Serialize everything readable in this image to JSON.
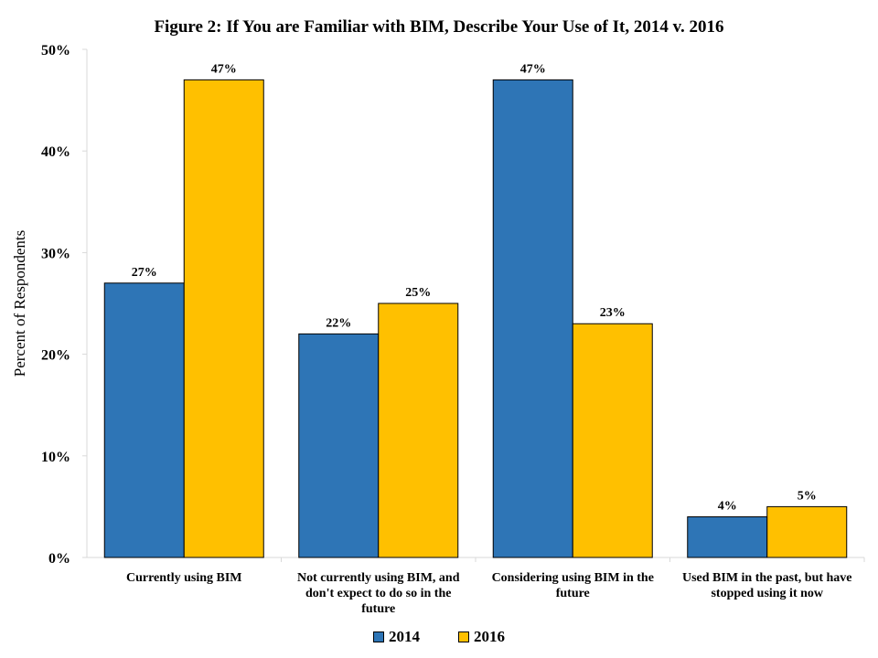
{
  "chart_data": {
    "type": "bar",
    "title": "Figure 2: If You are Familiar with BIM, Describe Your Use of It, 2014 v. 2016",
    "xlabel": "",
    "ylabel": "Percent of Respondents",
    "ylim": [
      0,
      50
    ],
    "ytick_values": [
      0,
      10,
      20,
      30,
      40,
      50
    ],
    "ytick_labels": [
      "0%",
      "10%",
      "20%",
      "30%",
      "40%",
      "50%"
    ],
    "grid": false,
    "legend_position": "bottom",
    "categories": [
      [
        "Currently using BIM"
      ],
      [
        "Not currently using BIM, and",
        "don't expect to do so in the",
        "future"
      ],
      [
        "Considering using BIM in the",
        "future"
      ],
      [
        "Used BIM in the past, but have",
        "stopped using it now"
      ]
    ],
    "series": [
      {
        "name": "2014",
        "color": "#2e75b6",
        "values": [
          27,
          22,
          47,
          4
        ],
        "labels": [
          "27%",
          "22%",
          "47%",
          "4%"
        ]
      },
      {
        "name": "2016",
        "color": "#ffc000",
        "values": [
          47,
          25,
          23,
          5
        ],
        "labels": [
          "47%",
          "25%",
          "23%",
          "5%"
        ]
      }
    ]
  }
}
